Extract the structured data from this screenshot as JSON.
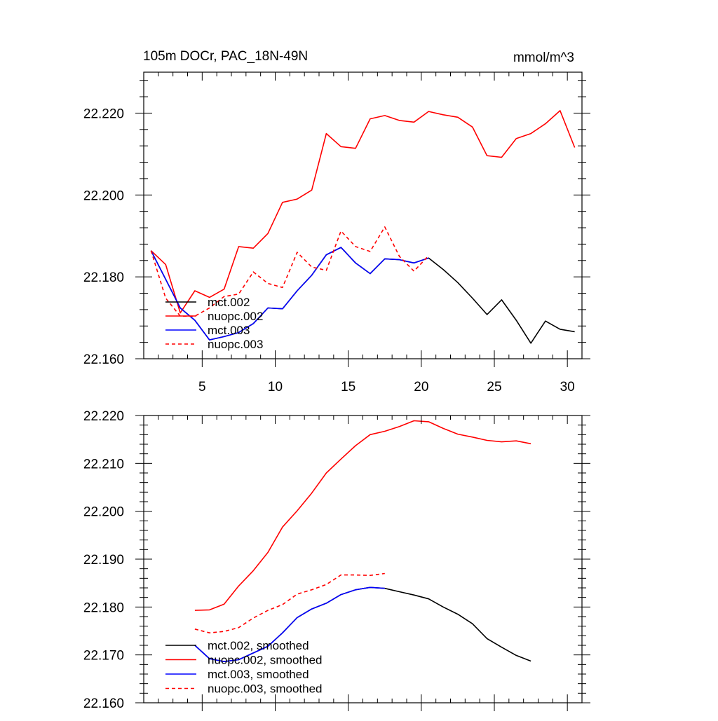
{
  "colors": {
    "mct_002": "#000000",
    "nuopc_002": "#ff0000",
    "mct_003": "#0000ff",
    "nuopc_003": "#ff0000",
    "frame": "#000000",
    "background": "#ffffff"
  },
  "chart_data": [
    {
      "type": "line",
      "title": "105m DOCr, PAC_18N-49N",
      "units": "mmol/m^3",
      "xlim": [
        1,
        31
      ],
      "ylim": [
        22.16,
        22.23
      ],
      "xticks": [
        5,
        10,
        15,
        20,
        25,
        30
      ],
      "xtick_labels": [
        "5",
        "10",
        "15",
        "20",
        "25",
        "30"
      ],
      "yticks": [
        22.16,
        22.18,
        22.2,
        22.22
      ],
      "ytick_labels": [
        "22.160",
        "22.180",
        "22.200",
        "22.220"
      ],
      "grid": false,
      "legend_position": "bottom-left",
      "series": [
        {
          "name": "mct.002",
          "style": "solid",
          "color": "#000000",
          "x": [
            1.5,
            2.5,
            3.5,
            4.5,
            5.5,
            6.5,
            7.5,
            8.5,
            9.5,
            10.5,
            11.5,
            12.5,
            13.5,
            14.5,
            15.5,
            16.5,
            17.5,
            18.5,
            19.5,
            20.5,
            21.5,
            22.5,
            23.5,
            24.5,
            25.5,
            26.5,
            27.5,
            28.5,
            29.5,
            30.5
          ],
          "y": [
            22.1864,
            22.1794,
            22.1724,
            22.1694,
            22.1646,
            22.1654,
            22.1664,
            22.1686,
            22.1724,
            22.1722,
            22.1766,
            22.1804,
            22.1854,
            22.1872,
            22.1834,
            22.1808,
            22.1844,
            22.1842,
            22.1834,
            22.1846,
            22.1818,
            22.1786,
            22.1748,
            22.1708,
            22.1744,
            22.1694,
            22.1638,
            22.1692,
            22.1672,
            22.1666
          ]
        },
        {
          "name": "nuopc.002",
          "style": "solid",
          "color": "#ff0000",
          "x": [
            1.5,
            2.5,
            3.5,
            4.5,
            5.5,
            6.5,
            7.5,
            8.5,
            9.5,
            10.5,
            11.5,
            12.5,
            13.5,
            14.5,
            15.5,
            16.5,
            17.5,
            18.5,
            19.5,
            20.5,
            21.5,
            22.5,
            23.5,
            24.5,
            25.5,
            26.5,
            27.5,
            28.5,
            29.5,
            30.5
          ],
          "y": [
            22.1864,
            22.183,
            22.1712,
            22.1766,
            22.175,
            22.177,
            22.1874,
            22.187,
            22.1906,
            22.1982,
            22.199,
            22.2012,
            22.215,
            22.2118,
            22.2114,
            22.2186,
            22.2194,
            22.2182,
            22.2178,
            22.2204,
            22.2196,
            22.219,
            22.2166,
            22.2096,
            22.2092,
            22.2138,
            22.215,
            22.2174,
            22.2206,
            22.2116
          ]
        },
        {
          "name": "mct.003",
          "style": "solid",
          "color": "#0000ff",
          "x": [
            1.5,
            2.5,
            3.5,
            4.5,
            5.5,
            6.5,
            7.5,
            8.5,
            9.5,
            10.5,
            11.5,
            12.5,
            13.5,
            14.5,
            15.5,
            16.5,
            17.5,
            18.5,
            19.5,
            20.5
          ],
          "y": [
            22.1864,
            22.1794,
            22.1724,
            22.1694,
            22.1646,
            22.1654,
            22.1664,
            22.1686,
            22.1724,
            22.1722,
            22.1766,
            22.1804,
            22.1854,
            22.1872,
            22.1834,
            22.1808,
            22.1844,
            22.1842,
            22.1834,
            22.1846
          ]
        },
        {
          "name": "nuopc.003",
          "style": "dashed",
          "color": "#ff0000",
          "x": [
            1.5,
            2.5,
            3.5,
            4.5,
            5.5,
            6.5,
            7.5,
            8.5,
            9.5,
            10.5,
            11.5,
            12.5,
            13.5,
            14.5,
            15.5,
            16.5,
            17.5,
            18.5,
            19.5,
            20.5
          ],
          "y": [
            22.1864,
            22.1748,
            22.1704,
            22.1704,
            22.1724,
            22.1752,
            22.1758,
            22.1812,
            22.1784,
            22.1774,
            22.186,
            22.1824,
            22.1816,
            22.1912,
            22.1874,
            22.1862,
            22.1922,
            22.185,
            22.1814,
            22.1852
          ]
        }
      ]
    },
    {
      "type": "line",
      "title": "",
      "xlim": [
        1,
        31
      ],
      "ylim": [
        22.16,
        22.22
      ],
      "xticks": [
        5,
        10,
        15,
        20,
        25,
        30
      ],
      "xtick_labels": [],
      "yticks": [
        22.16,
        22.17,
        22.18,
        22.19,
        22.2,
        22.21,
        22.22
      ],
      "ytick_labels": [
        "22.160",
        "22.170",
        "22.180",
        "22.190",
        "22.200",
        "22.210",
        "22.220"
      ],
      "grid": false,
      "legend_position": "bottom-left",
      "series": [
        {
          "name": "mct.002, smoothed",
          "style": "solid",
          "color": "#000000",
          "x": [
            4.5,
            5.5,
            6.5,
            7.5,
            8.5,
            9.5,
            10.5,
            11.5,
            12.5,
            13.5,
            14.5,
            15.5,
            16.5,
            17.5,
            18.5,
            19.5,
            20.5,
            21.5,
            22.5,
            23.5,
            24.5,
            25.5,
            26.5,
            27.5
          ],
          "y": [
            22.172,
            22.1692,
            22.1686,
            22.169,
            22.1704,
            22.1718,
            22.1746,
            22.1778,
            22.1796,
            22.1808,
            22.1826,
            22.1836,
            22.1841,
            22.1839,
            22.1832,
            22.1825,
            22.1817,
            22.18,
            22.1785,
            22.1765,
            22.1734,
            22.1716,
            22.1699,
            22.1687
          ]
        },
        {
          "name": "nuopc.002, smoothed",
          "style": "solid",
          "color": "#ff0000",
          "x": [
            4.5,
            5.5,
            6.5,
            7.5,
            8.5,
            9.5,
            10.5,
            11.5,
            12.5,
            13.5,
            14.5,
            15.5,
            16.5,
            17.5,
            18.5,
            19.5,
            20.5,
            21.5,
            22.5,
            23.5,
            24.5,
            25.5,
            26.5,
            27.5
          ],
          "y": [
            22.1793,
            22.1794,
            22.1806,
            22.1844,
            22.1876,
            22.1914,
            22.1967,
            22.2001,
            22.2038,
            22.208,
            22.2109,
            22.2137,
            22.216,
            22.2167,
            22.2177,
            22.2189,
            22.2187,
            22.2173,
            22.2161,
            22.2155,
            22.2148,
            22.2145,
            22.2147,
            22.2141
          ]
        },
        {
          "name": "mct.003, smoothed",
          "style": "solid",
          "color": "#0000ff",
          "x": [
            4.5,
            5.5,
            6.5,
            7.5,
            8.5,
            9.5,
            10.5,
            11.5,
            12.5,
            13.5,
            14.5,
            15.5,
            16.5,
            17.5
          ],
          "y": [
            22.172,
            22.1692,
            22.1686,
            22.169,
            22.1704,
            22.1718,
            22.1746,
            22.1778,
            22.1796,
            22.1808,
            22.1826,
            22.1836,
            22.1841,
            22.1839
          ]
        },
        {
          "name": "nuopc.003, smoothed",
          "style": "dashed",
          "color": "#ff0000",
          "x": [
            4.5,
            5.5,
            6.5,
            7.5,
            8.5,
            9.5,
            10.5,
            11.5,
            12.5,
            13.5,
            14.5,
            15.5,
            16.5,
            17.5
          ],
          "y": [
            22.1754,
            22.1746,
            22.1749,
            22.1757,
            22.1777,
            22.1793,
            22.1805,
            22.1827,
            22.1836,
            22.1847,
            22.1867,
            22.1867,
            22.1866,
            22.187
          ]
        }
      ]
    }
  ]
}
